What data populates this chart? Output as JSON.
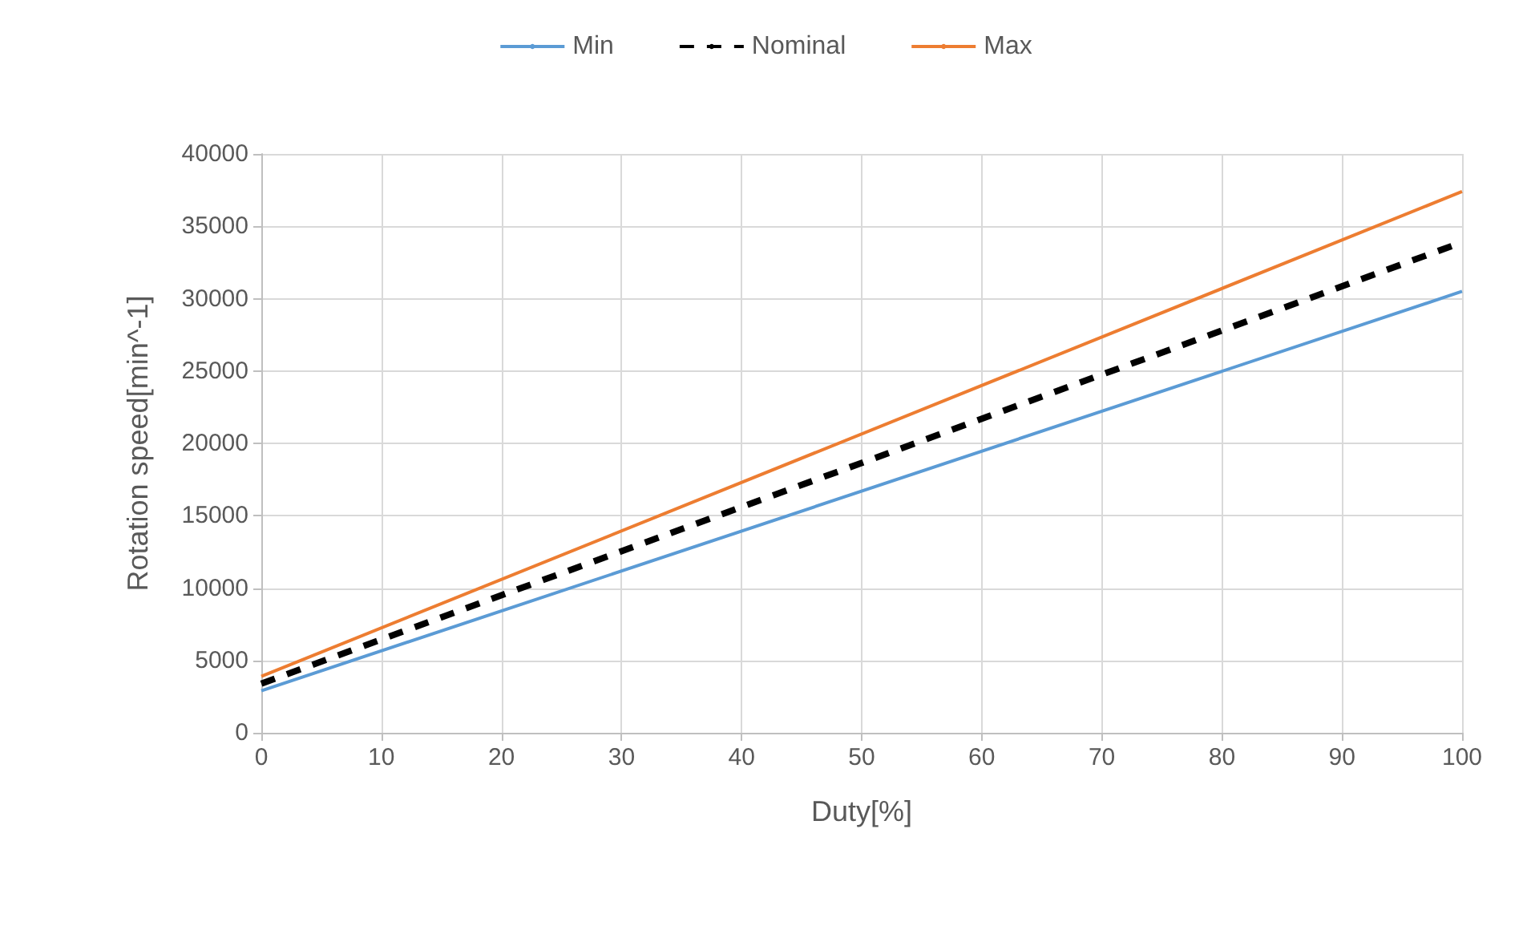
{
  "chart_data": {
    "type": "line",
    "xlabel": "Duty[%]",
    "ylabel": "Rotation speed[min^-1]",
    "x": [
      0,
      100
    ],
    "series": [
      {
        "name": "Min",
        "color": "#5b9bd5",
        "values": [
          2900,
          30500
        ],
        "line_style": "solid"
      },
      {
        "name": "Nominal",
        "color": "#000000",
        "values": [
          3400,
          33900
        ],
        "line_style": "dashed"
      },
      {
        "name": "Max",
        "color": "#ed7d31",
        "values": [
          3900,
          37400
        ],
        "line_style": "solid"
      }
    ],
    "xlim": [
      0,
      100
    ],
    "xticks": [
      0,
      10,
      20,
      30,
      40,
      50,
      60,
      70,
      80,
      90,
      100
    ],
    "ylim": [
      0,
      40000
    ],
    "yticks": [
      0,
      5000,
      10000,
      15000,
      20000,
      25000,
      30000,
      35000,
      40000
    ],
    "grid": true,
    "legend": "top",
    "marker": "none"
  }
}
